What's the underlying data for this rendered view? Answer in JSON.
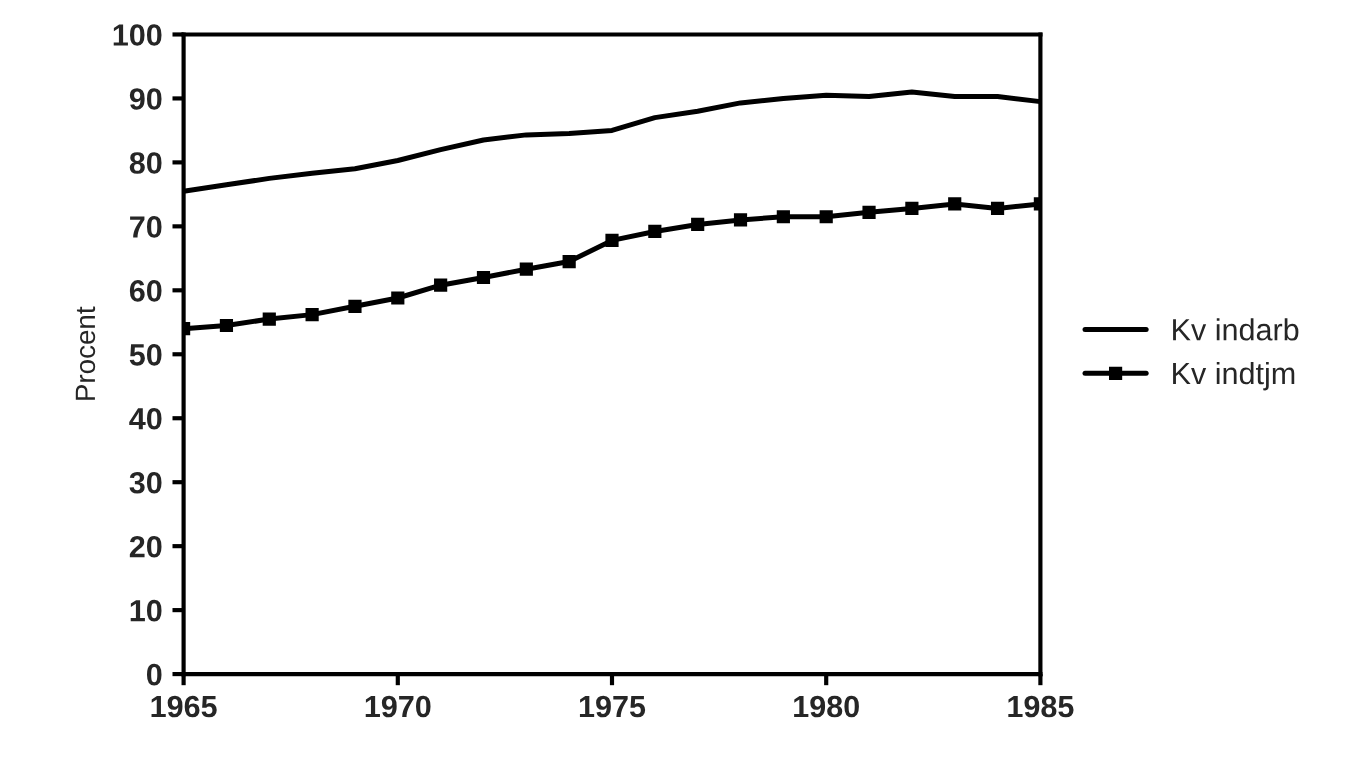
{
  "chart_data": {
    "type": "line",
    "ylabel": "Procent",
    "x": [
      1965,
      1966,
      1967,
      1968,
      1969,
      1970,
      1971,
      1972,
      1973,
      1974,
      1975,
      1976,
      1977,
      1978,
      1979,
      1980,
      1981,
      1982,
      1983,
      1984,
      1985
    ],
    "series": [
      {
        "name": "Kv indarb",
        "color": "#000000",
        "marker": "none",
        "values": [
          75.5,
          76.5,
          77.5,
          78.3,
          79,
          80.3,
          82,
          83.5,
          84.3,
          84.5,
          85,
          87,
          88,
          89.3,
          90,
          90.5,
          90.3,
          91,
          90.3,
          90.3,
          89.5
        ]
      },
      {
        "name": "Kv indtjm",
        "color": "#000000",
        "marker": "square",
        "values": [
          54,
          54.5,
          55.5,
          56.2,
          57.5,
          58.8,
          60.8,
          62,
          63.3,
          64.5,
          67.8,
          69.2,
          70.3,
          71,
          71.5,
          71.5,
          72.2,
          72.8,
          73.5,
          72.8,
          73.5
        ]
      }
    ],
    "xlim": [
      1965,
      1985
    ],
    "xticks": [
      1965,
      1970,
      1975,
      1980,
      1985
    ],
    "ylim": [
      0,
      100
    ],
    "yticks": [
      0,
      10,
      20,
      30,
      40,
      50,
      60,
      70,
      80,
      90,
      100
    ],
    "grid": false,
    "legend": "right",
    "line_style": "solid"
  }
}
